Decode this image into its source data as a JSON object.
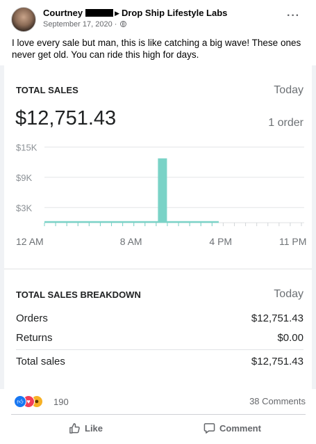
{
  "post": {
    "author": "Courtney",
    "group": "Drop Ship Lifestyle Labs",
    "date": "September 17, 2020",
    "separator": "·",
    "more_glyph": "···",
    "text": "I love every sale but man, this is like catching a big wave!  These ones never get old.  You can ride this high for days."
  },
  "sales_card": {
    "title": "TOTAL SALES",
    "period": "Today",
    "amount": "$12,751.43",
    "orders": "1 order"
  },
  "chart_data": {
    "type": "bar",
    "title": "TOTAL SALES",
    "y_ticks": [
      "$15K",
      "$9K",
      "$3K"
    ],
    "y_tick_values": [
      15000,
      9000,
      3000
    ],
    "ylim": [
      0,
      16000
    ],
    "x_tick_labels": [
      "12 AM",
      "8 AM",
      "4 PM",
      "11 PM"
    ],
    "x_tick_hours": [
      0,
      8,
      16,
      23
    ],
    "hours": [
      0,
      1,
      2,
      3,
      4,
      5,
      6,
      7,
      8,
      9,
      10,
      11,
      12,
      13,
      14,
      15,
      16,
      17,
      18,
      19,
      20,
      21,
      22,
      23
    ],
    "values": [
      0,
      0,
      0,
      0,
      0,
      0,
      0,
      0,
      0,
      0,
      12751.43,
      0,
      0,
      0,
      0,
      0,
      0,
      0,
      0,
      0,
      0,
      0,
      0,
      0
    ],
    "recorded_hours": 16,
    "bar_color": "#7ad3c7",
    "grid": true
  },
  "breakdown": {
    "title": "TOTAL SALES BREAKDOWN",
    "period": "Today",
    "rows": [
      {
        "label": "Orders",
        "value": "$12,751.43"
      },
      {
        "label": "Returns",
        "value": "$0.00"
      },
      {
        "label": "Total sales",
        "value": "$12,751.43"
      }
    ]
  },
  "footer": {
    "reaction_count": "190",
    "comments": "38 Comments",
    "like_label": "Like",
    "comment_label": "Comment",
    "reactions": [
      "like-icon",
      "love-icon",
      "wow-icon"
    ]
  }
}
